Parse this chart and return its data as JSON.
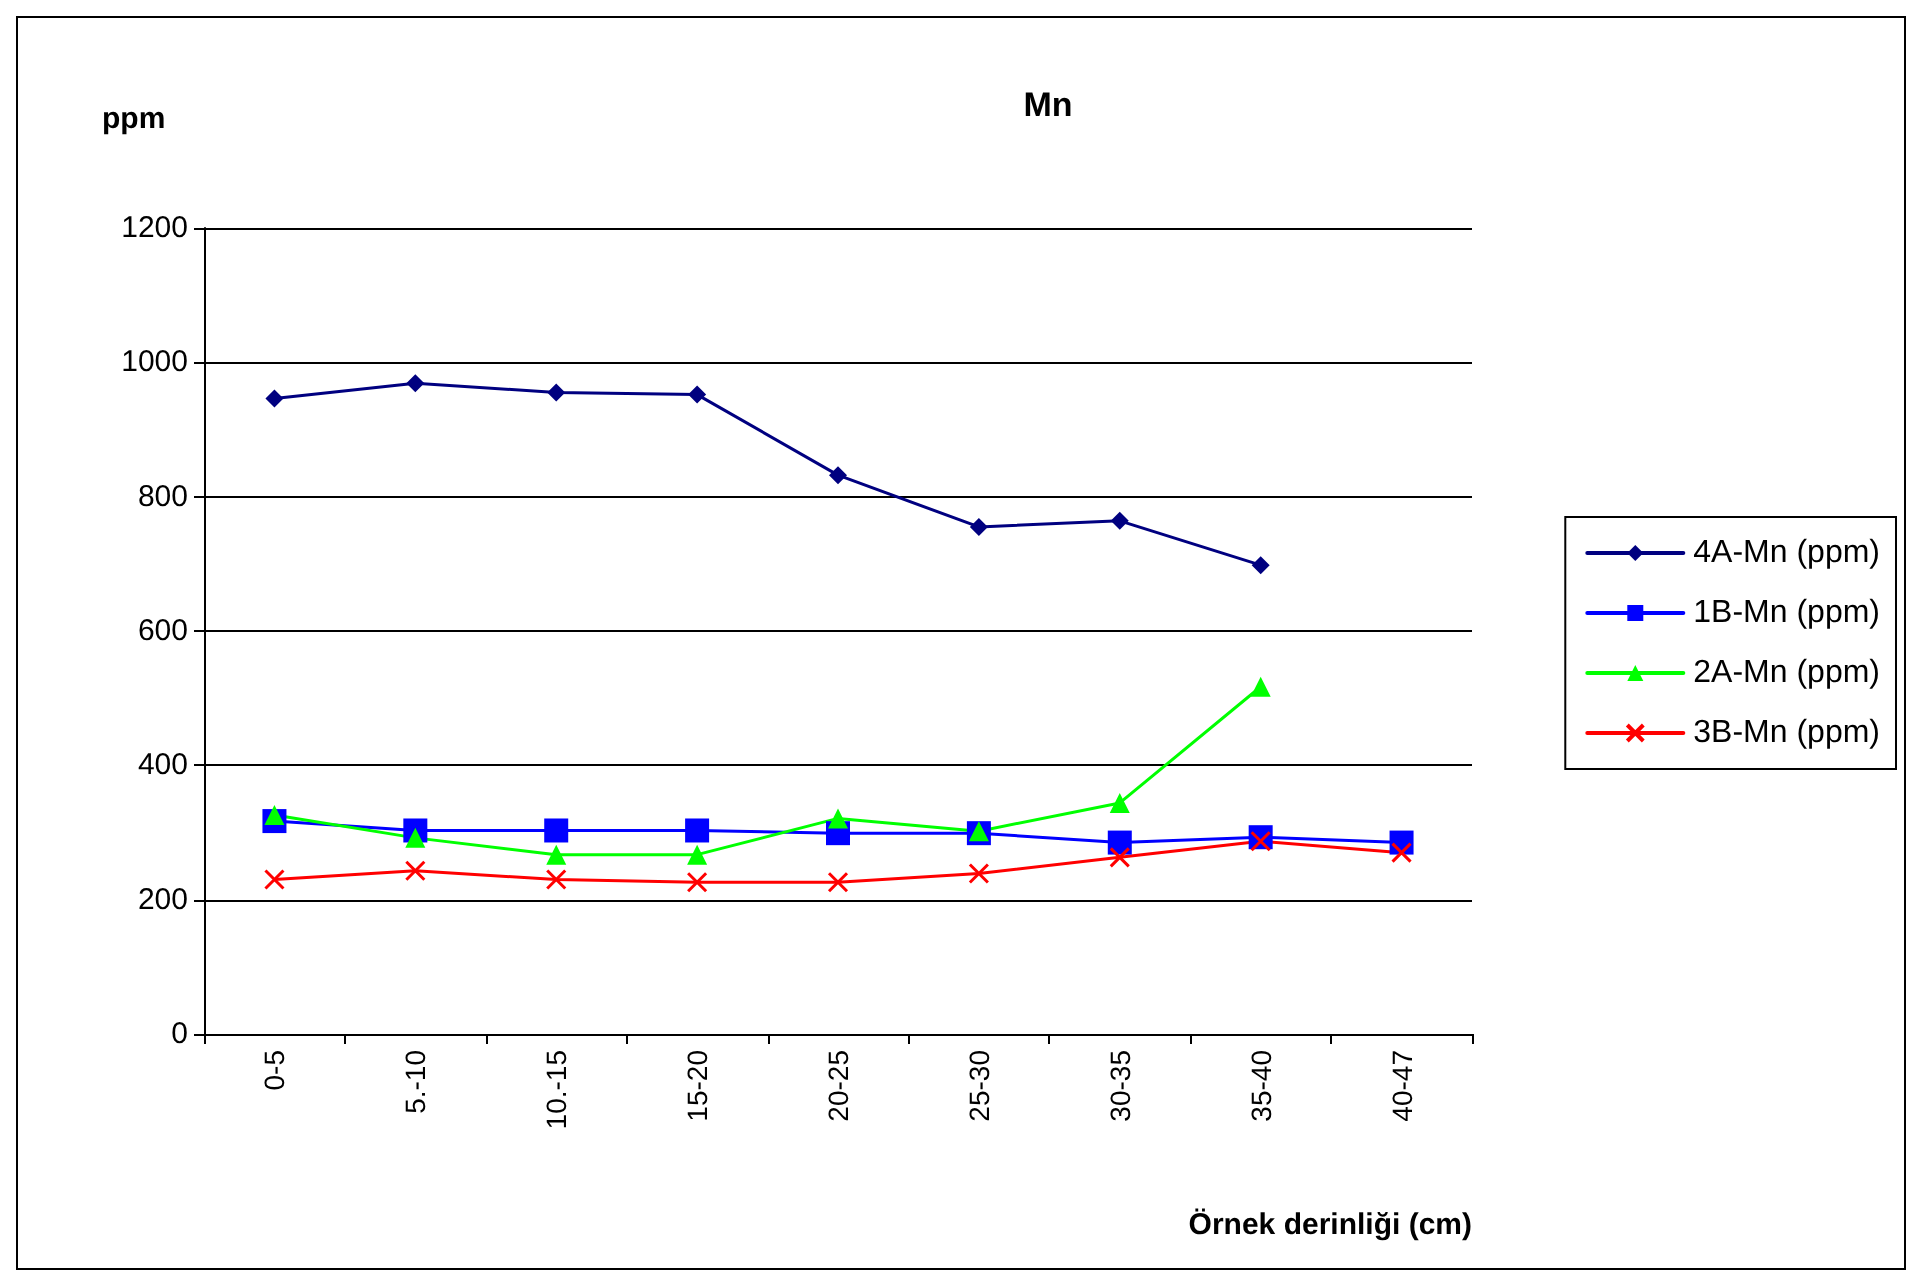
{
  "chart_data": {
    "type": "line",
    "title": "Mn",
    "ylabel": "ppm",
    "xlabel": "Örnek derinliği (cm)",
    "categories": [
      "0-5",
      "5.-10",
      "10.-15",
      "15-20",
      "20-25",
      "25-30",
      "30-35",
      "35-40",
      "40-47"
    ],
    "series": [
      {
        "name": "4A-Mn (ppm)",
        "color": "#000080",
        "marker": "diamond",
        "values": [
          946,
          969,
          955,
          952,
          832,
          755,
          764,
          698,
          null
        ]
      },
      {
        "name": "1B-Mn (ppm)",
        "color": "#0000ff",
        "marker": "square",
        "values": [
          317,
          303,
          303,
          303,
          299,
          299,
          285,
          293,
          285
        ]
      },
      {
        "name": "2A-Mn (ppm)",
        "color": "#00ff00",
        "marker": "triangle",
        "values": [
          326,
          292,
          267,
          267,
          321,
          302,
          344,
          517,
          null
        ]
      },
      {
        "name": "3B-Mn (ppm)",
        "color": "#ff0000",
        "marker": "cross",
        "values": [
          230,
          243,
          230,
          226,
          226,
          239,
          263,
          287,
          270
        ]
      }
    ],
    "ylim": [
      0,
      1200
    ],
    "yticks": [
      0,
      200,
      400,
      600,
      800,
      1000,
      1200
    ],
    "grid": "y",
    "legend": "right",
    "line_style": "solid"
  }
}
